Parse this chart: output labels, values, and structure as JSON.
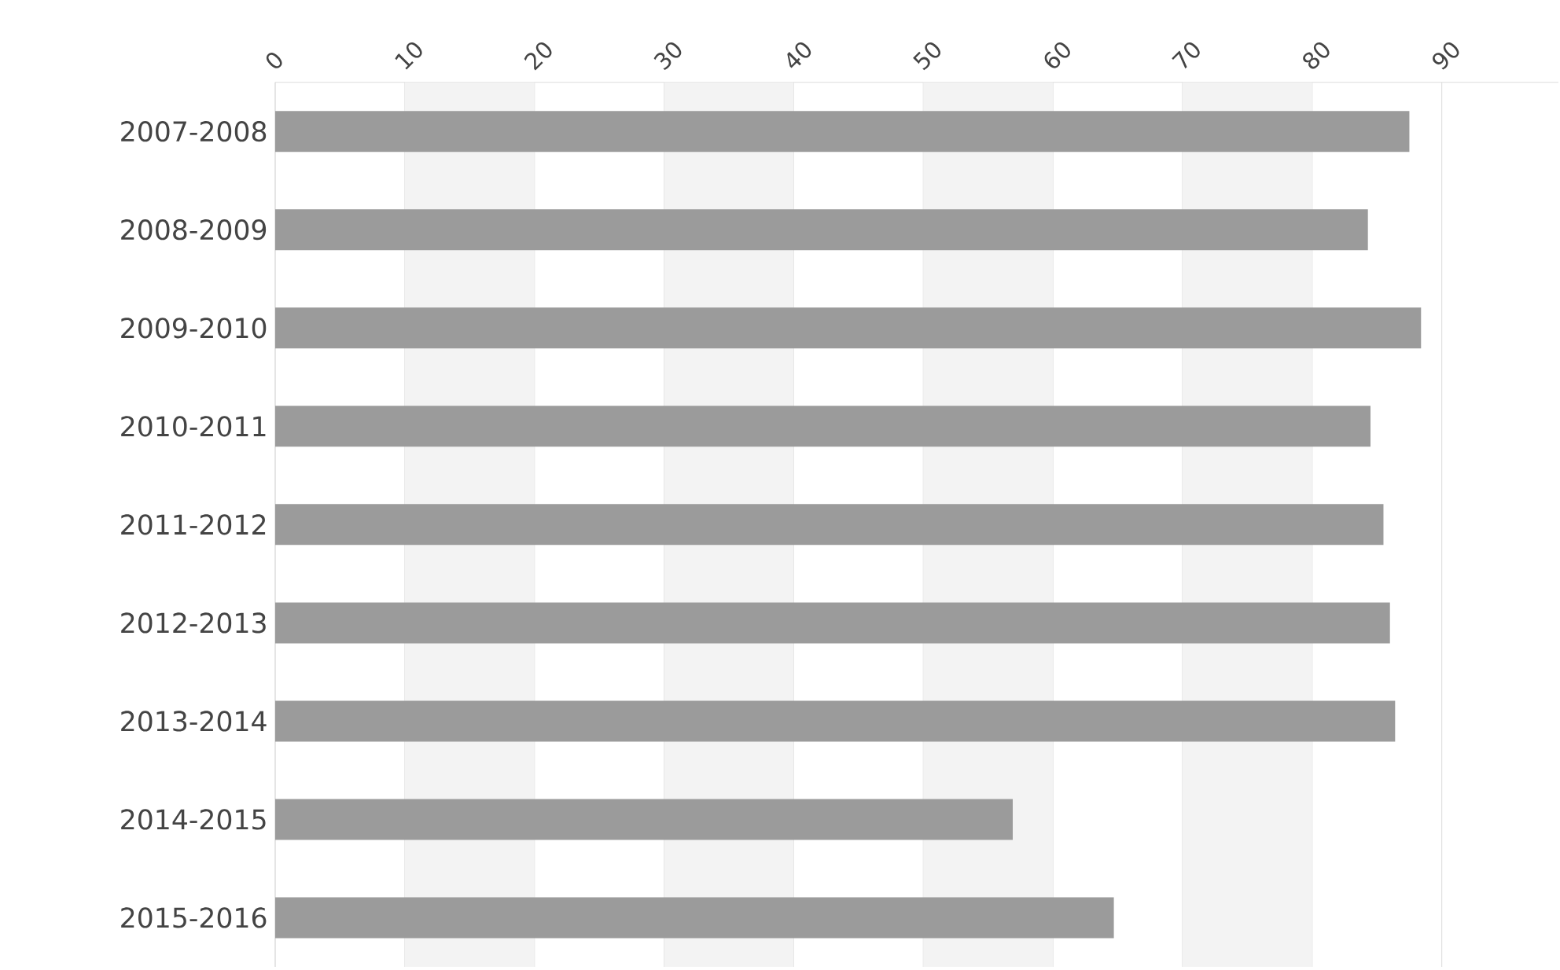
{
  "chart_data": {
    "type": "bar",
    "orientation": "horizontal",
    "categories": [
      "2007-2008",
      "2008-2009",
      "2009-2010",
      "2010-2011",
      "2011-2012",
      "2012-2013",
      "2013-2014",
      "2014-2015",
      "2015-2016"
    ],
    "values": [
      87.5,
      84.3,
      88.4,
      84.5,
      85.5,
      86.0,
      86.4,
      56.9,
      64.7
    ],
    "color": "#9b9b9b",
    "xlim": [
      0,
      99
    ],
    "xticks": [
      0,
      10,
      20,
      30,
      40,
      50,
      60,
      70,
      80,
      90
    ],
    "grid": "x",
    "bands": [
      {
        "axis": "x",
        "from": 10,
        "to": 20,
        "color": "#f3f3f3"
      },
      {
        "axis": "x",
        "from": 30,
        "to": 40,
        "color": "#f3f3f3"
      },
      {
        "axis": "x",
        "from": 50,
        "to": 60,
        "color": "#f3f3f3"
      },
      {
        "axis": "x",
        "from": 70,
        "to": 80,
        "color": "#f3f3f3"
      }
    ]
  }
}
